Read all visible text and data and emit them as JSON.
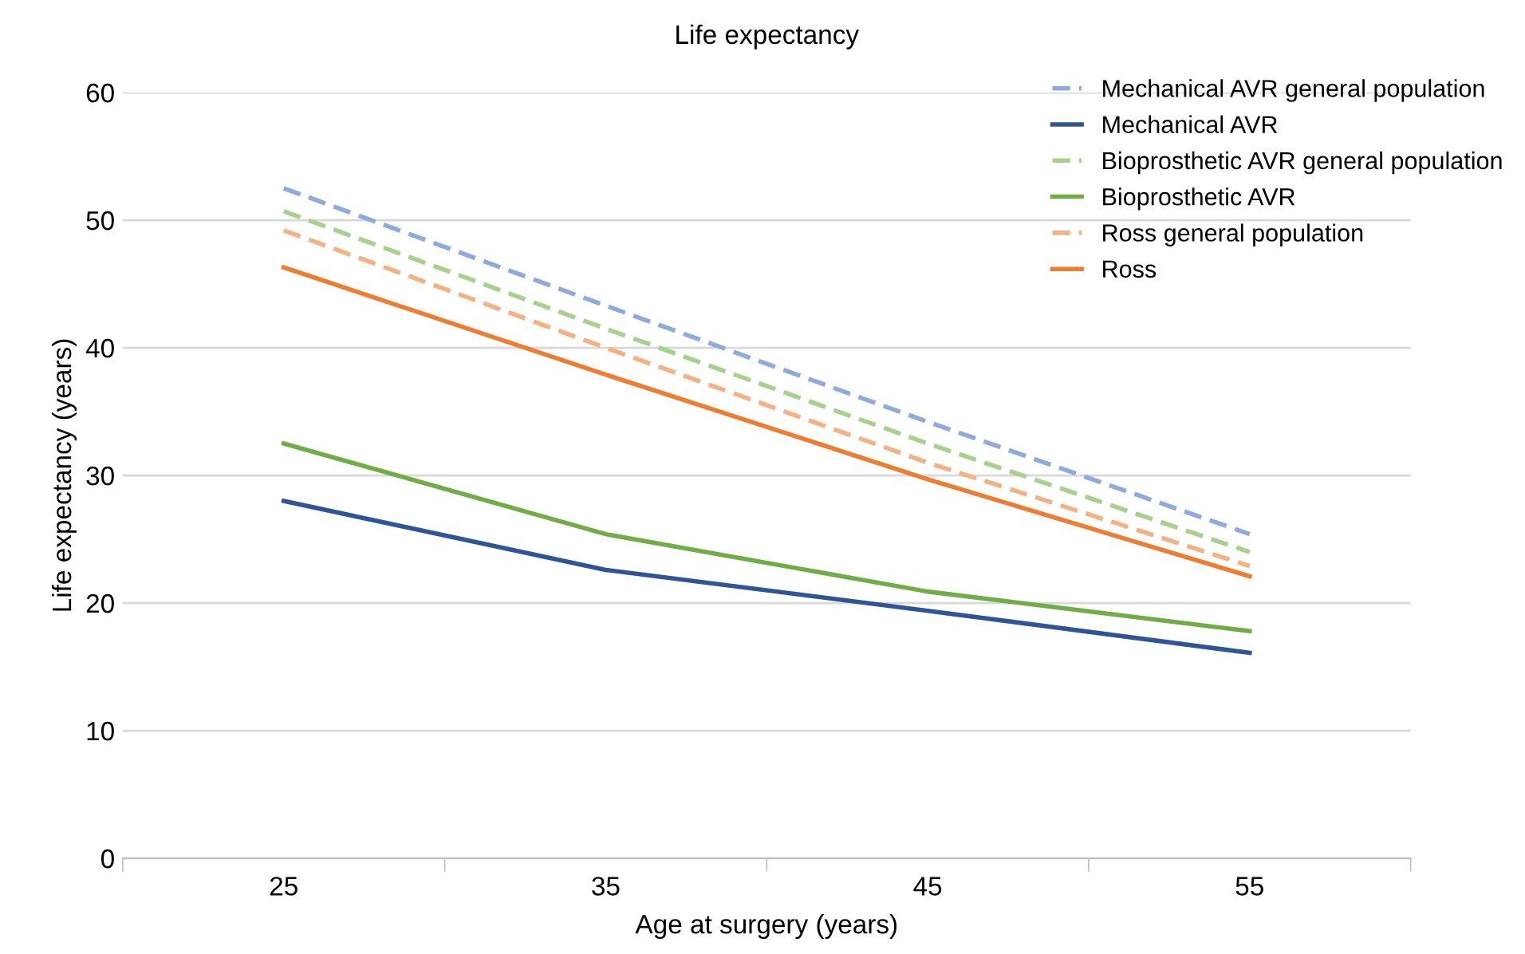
{
  "chart_data": {
    "type": "line",
    "title": "Life expectancy",
    "xlabel": "Age at surgery (years)",
    "ylabel": "Life expectancy (years)",
    "categories": [
      "25",
      "35",
      "45",
      "55"
    ],
    "series": [
      {
        "name": "Mechanical AVR general population",
        "color": "#8faadc",
        "line_style": "dashed",
        "values": [
          52.5,
          43.3,
          34.2,
          25.4
        ]
      },
      {
        "name": "Mechanical AVR",
        "color": "#2f5597",
        "line_style": "solid",
        "values": [
          28.0,
          22.6,
          19.4,
          16.1
        ]
      },
      {
        "name": "Bioprosthetic AVR general population",
        "color": "#a9d18e",
        "line_style": "dashed",
        "values": [
          50.7,
          41.5,
          32.5,
          24.0
        ]
      },
      {
        "name": "Bioprosthetic AVR",
        "color": "#70ad47",
        "line_style": "solid",
        "values": [
          32.5,
          25.4,
          20.9,
          17.8
        ]
      },
      {
        "name": "Ross general population",
        "color": "#f4b183",
        "line_style": "dashed",
        "values": [
          49.2,
          40.0,
          31.0,
          22.9
        ]
      },
      {
        "name": "Ross",
        "color": "#ed7d31",
        "line_style": "solid",
        "values": [
          46.3,
          37.9,
          29.7,
          22.1
        ]
      }
    ],
    "ylim": [
      0,
      60
    ],
    "yticks": [
      0,
      10,
      20,
      30,
      40,
      50,
      60
    ],
    "grid": "y",
    "legend": "top right",
    "marker": "none"
  }
}
